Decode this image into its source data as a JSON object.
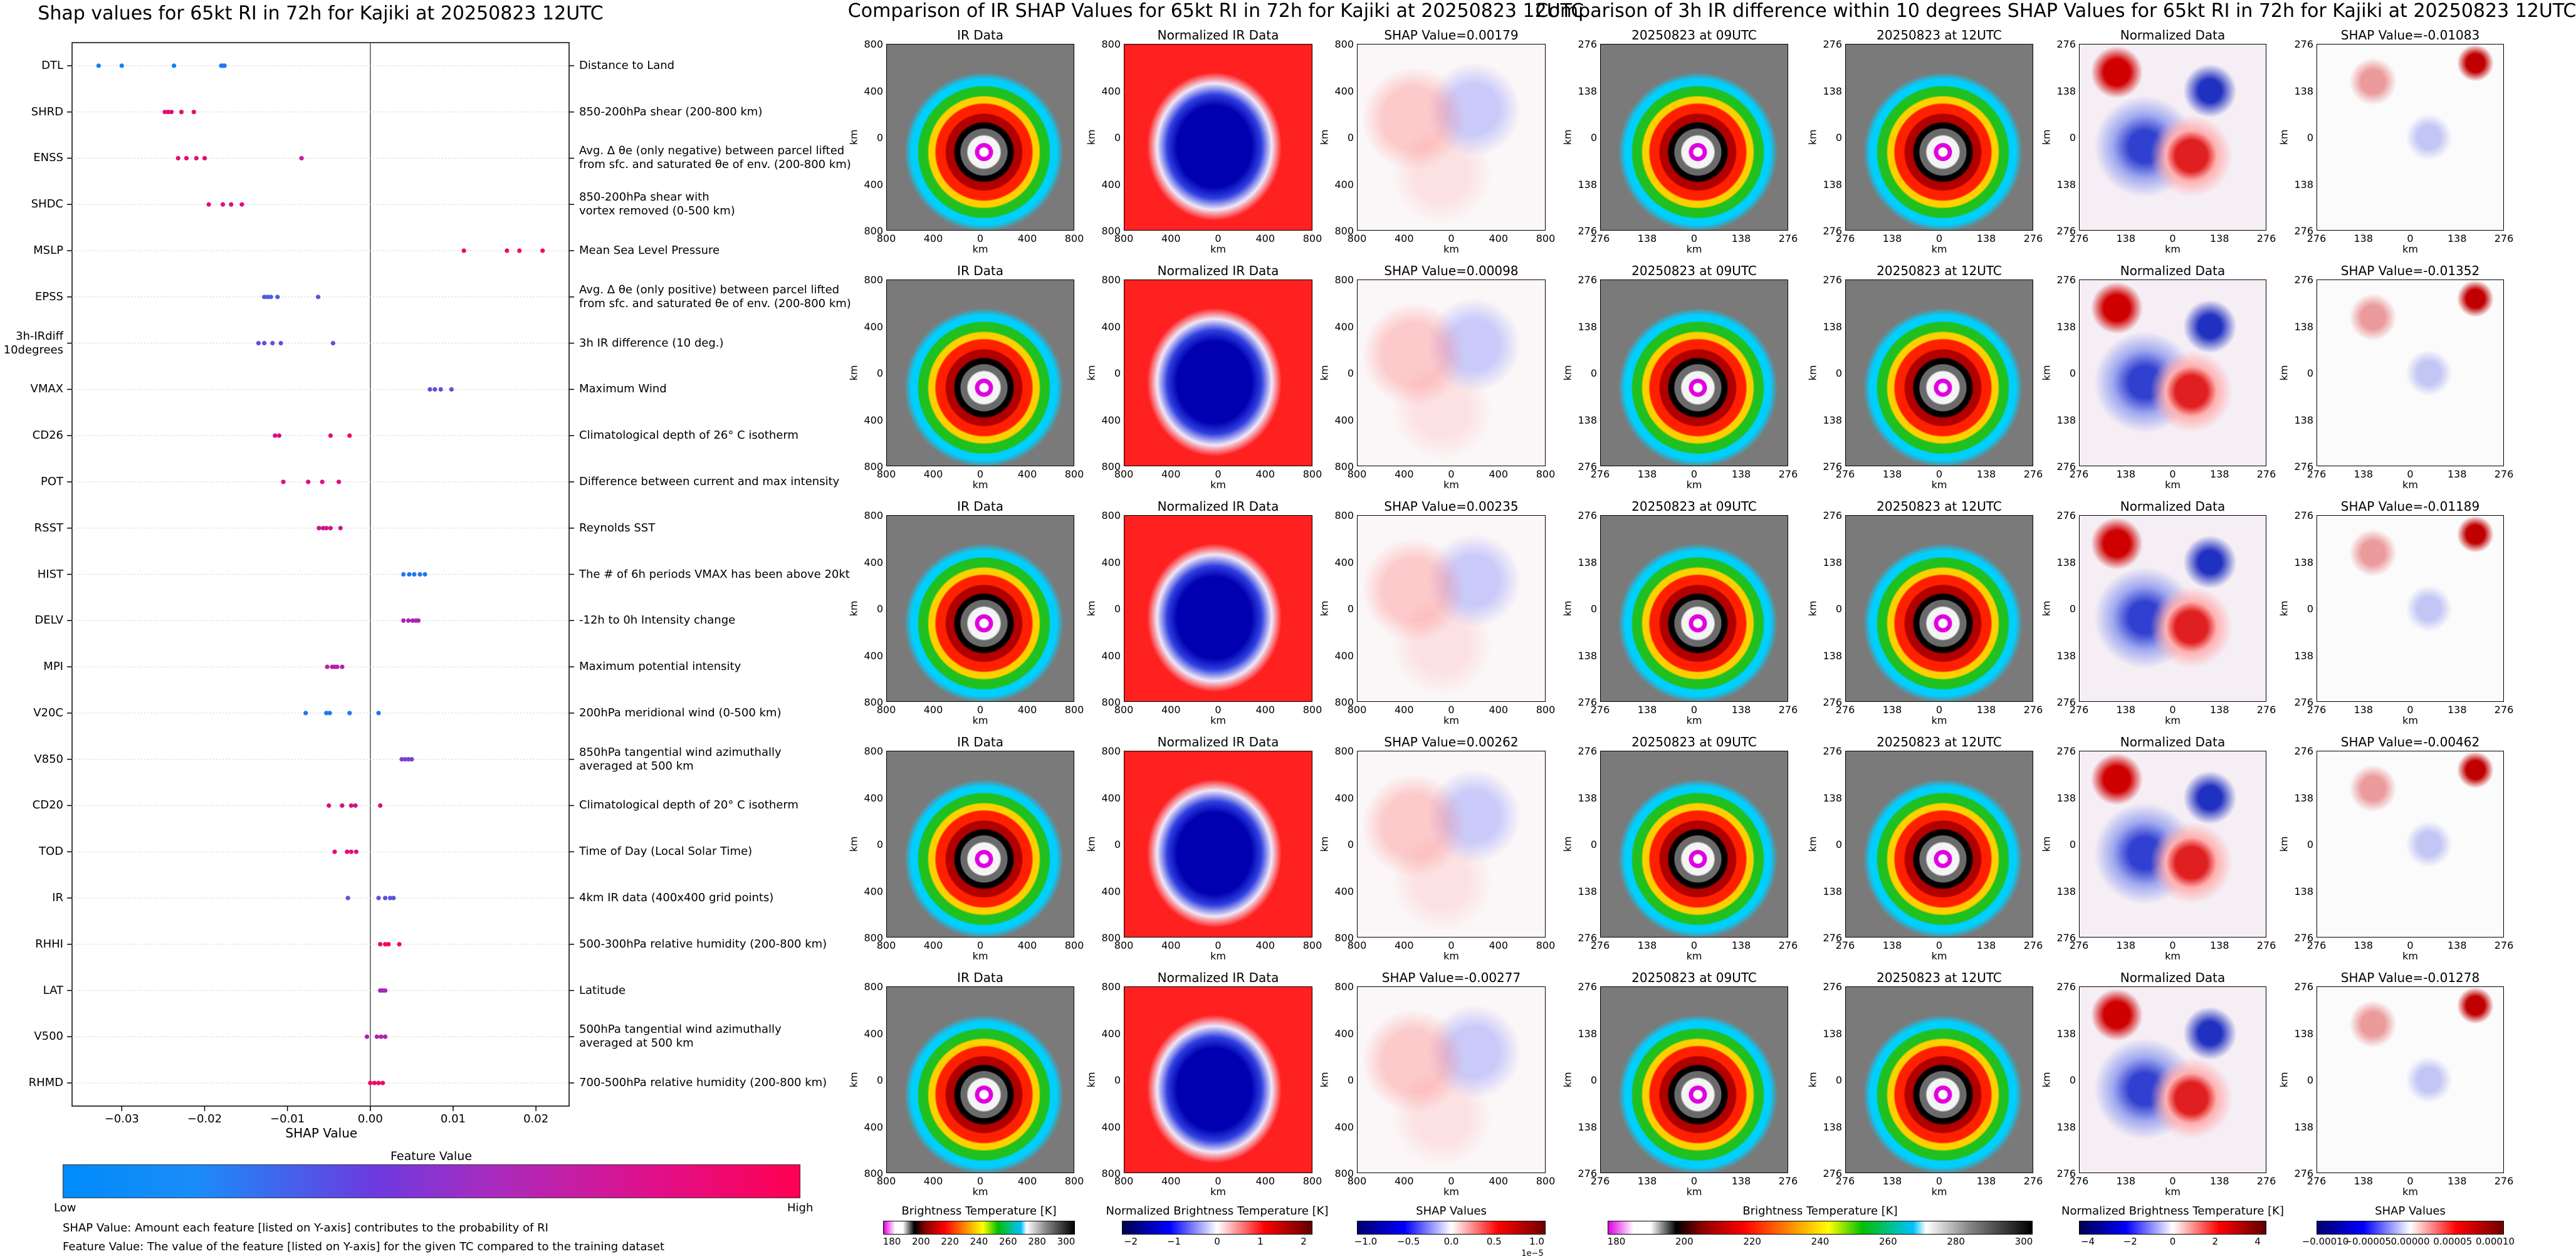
{
  "left": {
    "title": "Shap values for 65kt RI in 72h for Kajiki at 20250823 12UTC",
    "xlabel": "SHAP Value",
    "cbar_title": "Feature Value",
    "cbar_low": "Low",
    "cbar_high": "High",
    "note1": "SHAP Value: Amount each feature [listed on Y-axis] contributes to the probability of RI",
    "note2": "Feature Value: The value of the feature [listed on Y-axis] for the given TC compared to the training dataset"
  },
  "middle": {
    "title": "Comparison of IR SHAP Values for 65kt RI in 72h for Kajiki at 20250823 12UTC",
    "col1_title": "IR Data",
    "col2_title": "Normalized IR Data",
    "shap_titles": [
      "SHAP Value=0.00179",
      "SHAP Value=0.00098",
      "SHAP Value=0.00235",
      "SHAP Value=0.00262",
      "SHAP Value=-0.00277"
    ],
    "xticks": [
      "800",
      "400",
      "0",
      "400",
      "800"
    ],
    "yticks": [
      "800",
      "400",
      "0",
      "400",
      "800"
    ],
    "axis_label": "km",
    "cbar1_label": "Brightness Temperature [K]",
    "cbar1_ticks": [
      "180",
      "200",
      "220",
      "240",
      "260",
      "280",
      "300"
    ],
    "cbar2_label": "Normalized Brightness Temperature [K]",
    "cbar2_ticks": [
      "−2",
      "−1",
      "0",
      "1",
      "2"
    ],
    "cbar3_label": "SHAP Values",
    "cbar3_ticks": [
      "−1.0",
      "−0.5",
      "0.0",
      "0.5",
      "1.0"
    ],
    "cbar3_exp": "1e−5"
  },
  "right": {
    "title": "Comparison of 3h IR difference within 10 degrees SHAP Values for 65kt RI in 72h for Kajiki at 20250823 12UTC",
    "col1_title": "20250823 at 09UTC",
    "col2_title": "20250823 at 12UTC",
    "col3_title": "Normalized Data",
    "shap_titles": [
      "SHAP Value=-0.01083",
      "SHAP Value=-0.01352",
      "SHAP Value=-0.01189",
      "SHAP Value=-0.00462",
      "SHAP Value=-0.01278"
    ],
    "xticks": [
      "276",
      "138",
      "0",
      "138",
      "276"
    ],
    "yticks": [
      "276",
      "138",
      "0",
      "138",
      "276"
    ],
    "axis_label": "km",
    "cbar1_label": "Brightness Temperature [K]",
    "cbar1_ticks": [
      "180",
      "200",
      "220",
      "240",
      "260",
      "280",
      "300"
    ],
    "cbar2_label": "Normalized Brightness Temperature [K]",
    "cbar2_ticks": [
      "−4",
      "−2",
      "0",
      "2",
      "4"
    ],
    "cbar3_label": "SHAP Values",
    "cbar3_ticks": [
      "−0.00010",
      "−0.00005",
      "0.00000",
      "0.00005",
      "0.00010"
    ]
  },
  "chart_data": {
    "type": "scatter",
    "title": "Shap values for 65kt RI in 72h for Kajiki at 20250823 12UTC",
    "xlabel": "SHAP Value",
    "xlim": [
      -0.036,
      0.024
    ],
    "xticks": [
      -0.03,
      -0.02,
      -0.01,
      0.0,
      0.01,
      0.02
    ],
    "xtick_labels": [
      "−0.03",
      "−0.02",
      "−0.01",
      "0.00",
      "0.01",
      "0.02"
    ],
    "colors": {
      "low": "#008bfb",
      "high": "#ff0052",
      "mid": "#9b2bc8"
    },
    "features": [
      {
        "name": "DTL",
        "desc": "Distance to Land",
        "points": [
          [
            -0.0328,
            0.05
          ],
          [
            -0.03,
            0.05
          ],
          [
            -0.0237,
            0.05
          ],
          [
            -0.018,
            0.1
          ],
          [
            -0.0178,
            0.1
          ],
          [
            -0.0176,
            0.1
          ]
        ]
      },
      {
        "name": "SHRD",
        "desc": "850-200hPa shear (200-800 km)",
        "points": [
          [
            -0.0248,
            0.85
          ],
          [
            -0.0244,
            0.85
          ],
          [
            -0.024,
            0.85
          ],
          [
            -0.0228,
            0.85
          ],
          [
            -0.0213,
            0.85
          ]
        ]
      },
      {
        "name": "ENSS",
        "desc": "Avg. Δ θe (only negative) between parcel lifted\nfrom sfc. and saturated θe of env. (200-800 km)",
        "points": [
          [
            -0.0232,
            0.85
          ],
          [
            -0.0222,
            0.85
          ],
          [
            -0.021,
            0.85
          ],
          [
            -0.02,
            0.85
          ],
          [
            -0.0083,
            0.7
          ]
        ]
      },
      {
        "name": "SHDC",
        "desc": "850-200hPa shear with\nvortex removed (0-500 km)",
        "points": [
          [
            -0.0195,
            0.85
          ],
          [
            -0.0178,
            0.85
          ],
          [
            -0.0168,
            0.85
          ],
          [
            -0.0155,
            0.85
          ]
        ]
      },
      {
        "name": "MSLP",
        "desc": "Mean Sea Level Pressure",
        "points": [
          [
            0.0113,
            0.95
          ],
          [
            0.0165,
            0.95
          ],
          [
            0.018,
            0.95
          ],
          [
            0.0208,
            0.95
          ]
        ]
      },
      {
        "name": "EPSS",
        "desc": "Avg. Δ θe (only positive) between parcel lifted\nfrom sfc. and saturated θe of env. (200-800 km)",
        "points": [
          [
            -0.0128,
            0.25
          ],
          [
            -0.0124,
            0.25
          ],
          [
            -0.012,
            0.25
          ],
          [
            -0.0112,
            0.25
          ],
          [
            -0.0063,
            0.3
          ]
        ]
      },
      {
        "name": "3h-IRdiff\n10degrees",
        "desc": "3h IR difference (10 deg.)",
        "points": [
          [
            -0.0135,
            0.3
          ],
          [
            -0.0128,
            0.3
          ],
          [
            -0.0118,
            0.3
          ],
          [
            -0.0108,
            0.3
          ],
          [
            -0.0045,
            0.3
          ]
        ]
      },
      {
        "name": "VMAX",
        "desc": "Maximum Wind",
        "points": [
          [
            0.0072,
            0.35
          ],
          [
            0.0078,
            0.35
          ],
          [
            0.0085,
            0.3
          ],
          [
            0.0098,
            0.3
          ]
        ]
      },
      {
        "name": "CD26",
        "desc": "Climatological depth of 26° C isotherm",
        "points": [
          [
            -0.0115,
            0.8
          ],
          [
            -0.011,
            0.8
          ],
          [
            -0.0048,
            0.85
          ],
          [
            -0.0025,
            0.9
          ]
        ]
      },
      {
        "name": "POT",
        "desc": "Difference between current and max intensity",
        "points": [
          [
            -0.0105,
            0.8
          ],
          [
            -0.0075,
            0.8
          ],
          [
            -0.0058,
            0.8
          ],
          [
            -0.0038,
            0.85
          ]
        ]
      },
      {
        "name": "RSST",
        "desc": "Reynolds SST",
        "points": [
          [
            -0.0062,
            0.75
          ],
          [
            -0.0057,
            0.75
          ],
          [
            -0.0053,
            0.75
          ],
          [
            -0.0048,
            0.75
          ],
          [
            -0.0036,
            0.75
          ]
        ]
      },
      {
        "name": "HIST",
        "desc": "The # of 6h periods VMAX has been above 20kt",
        "points": [
          [
            0.004,
            0.1
          ],
          [
            0.0047,
            0.1
          ],
          [
            0.0053,
            0.1
          ],
          [
            0.006,
            0.1
          ],
          [
            0.0066,
            0.1
          ]
        ]
      },
      {
        "name": "DELV",
        "desc": "-12h to 0h Intensity change",
        "points": [
          [
            0.004,
            0.6
          ],
          [
            0.0046,
            0.6
          ],
          [
            0.0051,
            0.6
          ],
          [
            0.0055,
            0.6
          ],
          [
            0.0058,
            0.6
          ]
        ]
      },
      {
        "name": "MPI",
        "desc": "Maximum potential intensity",
        "points": [
          [
            -0.0052,
            0.65
          ],
          [
            -0.0046,
            0.65
          ],
          [
            -0.0043,
            0.65
          ],
          [
            -0.004,
            0.65
          ],
          [
            -0.0034,
            0.65
          ]
        ]
      },
      {
        "name": "V20C",
        "desc": "200hPa meridional wind (0-500 km)",
        "points": [
          [
            -0.0078,
            0.1
          ],
          [
            -0.0053,
            0.1
          ],
          [
            -0.0049,
            0.1
          ],
          [
            -0.0025,
            0.1
          ],
          [
            0.001,
            0.1
          ]
        ]
      },
      {
        "name": "V850",
        "desc": "850hPa tangential wind azimuthally\naveraged at 500 km",
        "points": [
          [
            0.0038,
            0.4
          ],
          [
            0.0042,
            0.4
          ],
          [
            0.0046,
            0.4
          ],
          [
            0.005,
            0.4
          ]
        ]
      },
      {
        "name": "CD20",
        "desc": "Climatological depth of 20° C isotherm",
        "points": [
          [
            -0.005,
            0.8
          ],
          [
            -0.0034,
            0.8
          ],
          [
            -0.0023,
            0.8
          ],
          [
            -0.0018,
            0.8
          ],
          [
            0.0012,
            0.8
          ]
        ]
      },
      {
        "name": "TOD",
        "desc": "Time of Day (Local Solar Time)",
        "points": [
          [
            -0.0043,
            0.85
          ],
          [
            -0.0028,
            0.85
          ],
          [
            -0.0023,
            0.85
          ],
          [
            -0.0017,
            0.85
          ]
        ]
      },
      {
        "name": "IR",
        "desc": "4km IR data (400x400 grid points)",
        "points": [
          [
            -0.0027,
            0.3
          ],
          [
            0.001,
            0.3
          ],
          [
            0.0018,
            0.3
          ],
          [
            0.0024,
            0.3
          ],
          [
            0.0028,
            0.3
          ]
        ]
      },
      {
        "name": "RHHI",
        "desc": "500-300hPa relative humidity (200-800 km)",
        "points": [
          [
            0.0012,
            0.95
          ],
          [
            0.0018,
            0.95
          ],
          [
            0.0022,
            0.95
          ],
          [
            0.0035,
            0.9
          ]
        ]
      },
      {
        "name": "LAT",
        "desc": "Latitude",
        "points": [
          [
            0.0012,
            0.55
          ],
          [
            0.0015,
            0.55
          ],
          [
            0.0018,
            0.55
          ]
        ]
      },
      {
        "name": "V500",
        "desc": "500hPa tangential wind azimuthally\naveraged at 500 km",
        "points": [
          [
            -0.0004,
            0.6
          ],
          [
            0.0008,
            0.6
          ],
          [
            0.0013,
            0.6
          ],
          [
            0.0018,
            0.6
          ]
        ]
      },
      {
        "name": "RHMD",
        "desc": "700-500hPa relative humidity (200-800 km)",
        "points": [
          [
            0.0,
            0.9
          ],
          [
            0.0005,
            0.9
          ],
          [
            0.001,
            0.9
          ],
          [
            0.0015,
            0.9
          ]
        ]
      }
    ]
  }
}
